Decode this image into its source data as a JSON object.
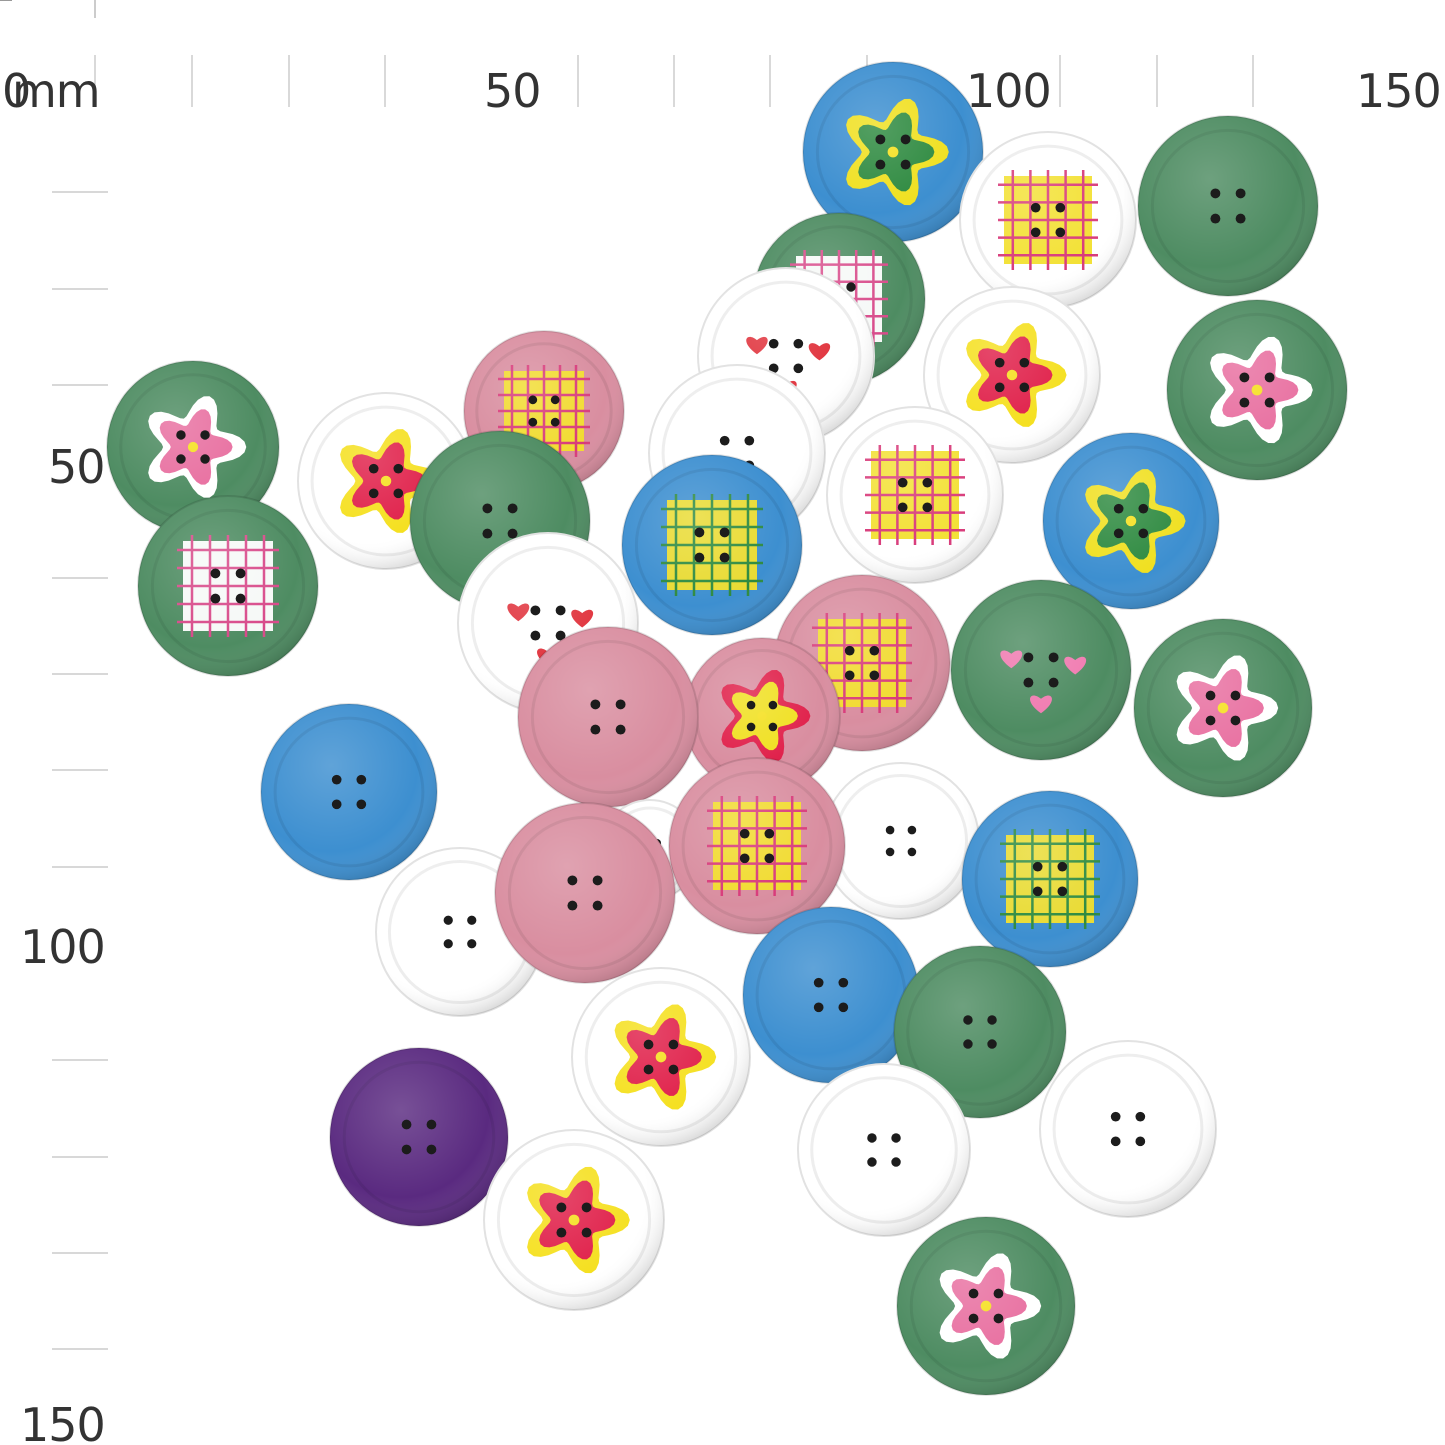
{
  "ruler": {
    "unit": "mm",
    "origin": "0",
    "top_labels": [
      "50",
      "100",
      "150"
    ],
    "left_labels": [
      "50",
      "100",
      "150"
    ],
    "colors": {
      "tick": "#999999",
      "text": "#333333"
    }
  },
  "buttons": [
    {
      "face": "#3d8fd0",
      "motif": "flower",
      "motif_colors": [
        "#f0e020",
        "#2e8a40"
      ]
    },
    {
      "face": "#ffffff",
      "motif": "plaid",
      "motif_colors": [
        "#f2df2a",
        "#d83a7a"
      ]
    },
    {
      "face": "#4e8c62",
      "motif": "plain"
    },
    {
      "face": "#4e8c62",
      "motif": "plaid",
      "motif_colors": [
        "#ffffff",
        "#d84a8a"
      ]
    },
    {
      "face": "#ffffff",
      "motif": "hearts",
      "motif_colors": [
        "#e0303a"
      ]
    },
    {
      "face": "#ffffff",
      "motif": "flower",
      "motif_colors": [
        "#f5e020",
        "#e0204a"
      ]
    },
    {
      "face": "#4e8c62",
      "motif": "flower",
      "motif_colors": [
        "#ffffff",
        "#e86fa0"
      ]
    },
    {
      "face": "#d98ea0",
      "motif": "plaid",
      "motif_colors": [
        "#f2df2a",
        "#d83a7a"
      ]
    },
    {
      "face": "#ffffff",
      "motif": "plain"
    },
    {
      "face": "#ffffff",
      "motif": "plaid",
      "motif_colors": [
        "#f2df2a",
        "#d83a7a"
      ]
    },
    {
      "face": "#4e8c62",
      "motif": "flower",
      "motif_colors": [
        "#ffffff",
        "#e86fa0"
      ]
    },
    {
      "face": "#ffffff",
      "motif": "flower",
      "motif_colors": [
        "#f5e020",
        "#e0204a"
      ]
    },
    {
      "face": "#4e8c62",
      "motif": "plain"
    },
    {
      "face": "#3d8fd0",
      "motif": "plaid",
      "motif_colors": [
        "#f2df2a",
        "#2e8a40"
      ]
    },
    {
      "face": "#3d8fd0",
      "motif": "flower",
      "motif_colors": [
        "#f0e020",
        "#2e8a40"
      ]
    },
    {
      "face": "#4e8c62",
      "motif": "plaid",
      "motif_colors": [
        "#ffffff",
        "#d84a8a"
      ]
    },
    {
      "face": "#ffffff",
      "motif": "hearts",
      "motif_colors": [
        "#e0303a"
      ]
    },
    {
      "face": "#d98ea0",
      "motif": "plaid",
      "motif_colors": [
        "#f2df2a",
        "#d83a7a"
      ]
    },
    {
      "face": "#4e8c62",
      "motif": "hearts",
      "motif_colors": [
        "#f07ab0"
      ]
    },
    {
      "face": "#4e8c62",
      "motif": "flower",
      "motif_colors": [
        "#ffffff",
        "#e86fa0"
      ]
    },
    {
      "face": "#d98ea0",
      "motif": "flower",
      "motif_colors": [
        "#e0204a",
        "#f0e020"
      ]
    },
    {
      "face": "#d98ea0",
      "motif": "plain"
    },
    {
      "face": "#3d8fd0",
      "motif": "plain"
    },
    {
      "face": "#ffffff",
      "motif": "plain"
    },
    {
      "face": "#ffffff",
      "motif": "plain"
    },
    {
      "face": "#d98ea0",
      "motif": "plaid",
      "motif_colors": [
        "#f2df2a",
        "#d83a7a"
      ]
    },
    {
      "face": "#3d8fd0",
      "motif": "plaid",
      "motif_colors": [
        "#f2df2a",
        "#2e8a40"
      ]
    },
    {
      "face": "#ffffff",
      "motif": "plain"
    },
    {
      "face": "#d98ea0",
      "motif": "plain"
    },
    {
      "face": "#3d8fd0",
      "motif": "plain"
    },
    {
      "face": "#4e8c62",
      "motif": "plain"
    },
    {
      "face": "#ffffff",
      "motif": "flower",
      "motif_colors": [
        "#f5e020",
        "#e0204a"
      ]
    },
    {
      "face": "#ffffff",
      "motif": "plain"
    },
    {
      "face": "#ffffff",
      "motif": "plain"
    },
    {
      "face": "#5a2a80",
      "motif": "plain"
    },
    {
      "face": "#ffffff",
      "motif": "flower",
      "motif_colors": [
        "#f5e020",
        "#e0204a"
      ]
    },
    {
      "face": "#4e8c62",
      "motif": "flower",
      "motif_colors": [
        "#ffffff",
        "#e86fa0"
      ]
    }
  ]
}
